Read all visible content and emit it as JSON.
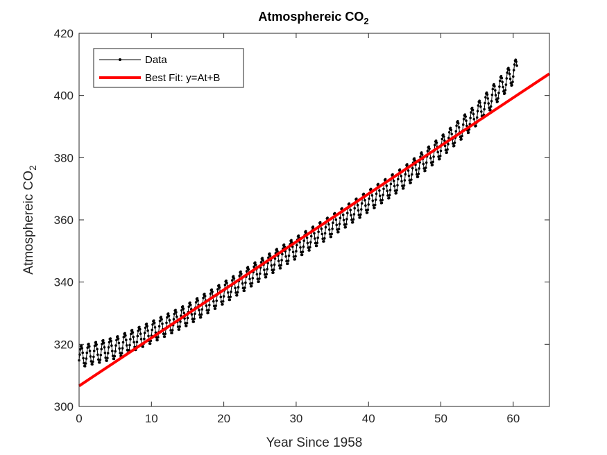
{
  "chart_data": {
    "type": "line",
    "title": "Atmosphereic CO",
    "title_subscript": "2",
    "xlabel": "Year Since 1958",
    "ylabel": "Atmosphereic CO",
    "ylabel_subscript": "2",
    "xlim": [
      0,
      65
    ],
    "ylim": [
      300,
      420
    ],
    "xticks": [
      0,
      10,
      20,
      30,
      40,
      50,
      60
    ],
    "yticks": [
      300,
      320,
      340,
      360,
      380,
      400,
      420
    ],
    "grid": false,
    "legend_position": "top-left",
    "series": [
      {
        "name": "Data",
        "kind": "line-with-markers",
        "color": "#000000",
        "trend_points": [
          [
            0,
            315.9
          ],
          [
            5,
            318.8
          ],
          [
            10,
            323.8
          ],
          [
            15,
            329.5
          ],
          [
            20,
            336.5
          ],
          [
            25,
            343.8
          ],
          [
            30,
            351.0
          ],
          [
            35,
            358.2
          ],
          [
            40,
            366.0
          ],
          [
            45,
            373.8
          ],
          [
            50,
            383.3
          ],
          [
            55,
            394.0
          ],
          [
            60.5,
            408.5
          ]
        ],
        "seasonal_amplitude": 3.5,
        "samples_per_year": 12
      },
      {
        "name": "Best Fit: y=At+B",
        "kind": "line",
        "color": "#ff0000",
        "x": [
          0,
          65
        ],
        "y": [
          306.6,
          407.0
        ]
      }
    ]
  }
}
